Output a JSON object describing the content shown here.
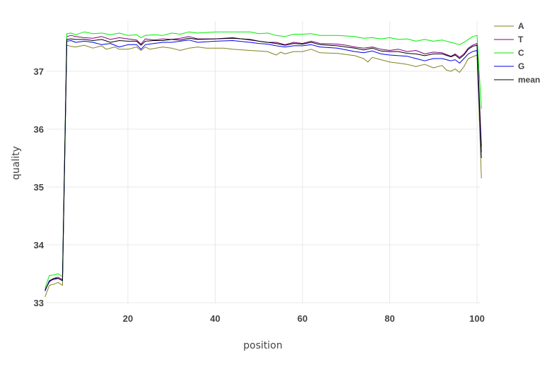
{
  "chart_data": {
    "type": "line",
    "xlabel": "position",
    "ylabel": "quality",
    "xlim": [
      1,
      101
    ],
    "ylim": [
      33,
      37.75
    ],
    "x_ticks": [
      20,
      40,
      60,
      80,
      100
    ],
    "y_ticks": [
      33,
      34,
      35,
      36,
      37
    ],
    "grid": true,
    "legend_position": "top-right",
    "series": [
      {
        "name": "A",
        "color": "#808020",
        "points": [
          [
            1,
            33.1
          ],
          [
            2,
            33.3
          ],
          [
            3,
            33.32
          ],
          [
            4,
            33.35
          ],
          [
            5,
            33.3
          ],
          [
            6,
            37.45
          ],
          [
            7,
            37.43
          ],
          [
            8,
            37.42
          ],
          [
            10,
            37.45
          ],
          [
            12,
            37.4
          ],
          [
            14,
            37.44
          ],
          [
            15,
            37.38
          ],
          [
            17,
            37.42
          ],
          [
            18,
            37.38
          ],
          [
            20,
            37.38
          ],
          [
            22,
            37.42
          ],
          [
            23,
            37.36
          ],
          [
            24,
            37.42
          ],
          [
            25,
            37.38
          ],
          [
            28,
            37.42
          ],
          [
            30,
            37.4
          ],
          [
            32,
            37.36
          ],
          [
            34,
            37.4
          ],
          [
            36,
            37.42
          ],
          [
            38,
            37.4
          ],
          [
            42,
            37.4
          ],
          [
            44,
            37.38
          ],
          [
            48,
            37.36
          ],
          [
            50,
            37.35
          ],
          [
            52,
            37.34
          ],
          [
            54,
            37.28
          ],
          [
            55,
            37.33
          ],
          [
            56,
            37.3
          ],
          [
            58,
            37.34
          ],
          [
            60,
            37.34
          ],
          [
            62,
            37.38
          ],
          [
            64,
            37.32
          ],
          [
            68,
            37.31
          ],
          [
            72,
            37.27
          ],
          [
            74,
            37.22
          ],
          [
            75,
            37.16
          ],
          [
            76,
            37.24
          ],
          [
            78,
            37.2
          ],
          [
            80,
            37.16
          ],
          [
            82,
            37.14
          ],
          [
            84,
            37.12
          ],
          [
            86,
            37.08
          ],
          [
            88,
            37.12
          ],
          [
            90,
            37.06
          ],
          [
            92,
            37.1
          ],
          [
            93,
            37.02
          ],
          [
            94,
            37.0
          ],
          [
            95,
            37.04
          ],
          [
            96,
            36.98
          ],
          [
            97,
            37.08
          ],
          [
            98,
            37.22
          ],
          [
            99,
            37.25
          ],
          [
            100,
            37.28
          ],
          [
            101,
            35.15
          ]
        ]
      },
      {
        "name": "T",
        "color": "#800080",
        "points": [
          [
            1,
            33.2
          ],
          [
            2,
            33.38
          ],
          [
            3,
            33.42
          ],
          [
            4,
            33.44
          ],
          [
            5,
            33.4
          ],
          [
            6,
            37.6
          ],
          [
            7,
            37.62
          ],
          [
            8,
            37.6
          ],
          [
            10,
            37.58
          ],
          [
            12,
            37.57
          ],
          [
            14,
            37.6
          ],
          [
            16,
            37.55
          ],
          [
            18,
            37.58
          ],
          [
            20,
            37.56
          ],
          [
            22,
            37.54
          ],
          [
            23,
            37.47
          ],
          [
            24,
            37.56
          ],
          [
            26,
            37.54
          ],
          [
            28,
            37.56
          ],
          [
            30,
            37.55
          ],
          [
            32,
            37.57
          ],
          [
            34,
            37.6
          ],
          [
            36,
            37.56
          ],
          [
            40,
            37.56
          ],
          [
            44,
            37.58
          ],
          [
            48,
            37.54
          ],
          [
            50,
            37.52
          ],
          [
            52,
            37.5
          ],
          [
            54,
            37.5
          ],
          [
            56,
            37.46
          ],
          [
            58,
            37.5
          ],
          [
            60,
            37.48
          ],
          [
            62,
            37.52
          ],
          [
            64,
            37.48
          ],
          [
            68,
            37.47
          ],
          [
            70,
            37.45
          ],
          [
            72,
            37.42
          ],
          [
            74,
            37.4
          ],
          [
            76,
            37.42
          ],
          [
            78,
            37.38
          ],
          [
            80,
            37.36
          ],
          [
            82,
            37.38
          ],
          [
            84,
            37.34
          ],
          [
            86,
            37.36
          ],
          [
            88,
            37.3
          ],
          [
            90,
            37.33
          ],
          [
            92,
            37.32
          ],
          [
            94,
            37.26
          ],
          [
            95,
            37.3
          ],
          [
            96,
            37.24
          ],
          [
            97,
            37.3
          ],
          [
            98,
            37.4
          ],
          [
            99,
            37.45
          ],
          [
            100,
            37.48
          ],
          [
            101,
            35.7
          ]
        ]
      },
      {
        "name": "C",
        "color": "#00ee00",
        "points": [
          [
            1,
            33.25
          ],
          [
            2,
            33.47
          ],
          [
            3,
            33.48
          ],
          [
            4,
            33.5
          ],
          [
            5,
            33.45
          ],
          [
            6,
            37.65
          ],
          [
            7,
            37.66
          ],
          [
            8,
            37.63
          ],
          [
            10,
            37.68
          ],
          [
            12,
            37.65
          ],
          [
            14,
            37.66
          ],
          [
            16,
            37.63
          ],
          [
            18,
            37.66
          ],
          [
            20,
            37.62
          ],
          [
            22,
            37.63
          ],
          [
            23,
            37.58
          ],
          [
            24,
            37.62
          ],
          [
            26,
            37.63
          ],
          [
            28,
            37.62
          ],
          [
            30,
            37.66
          ],
          [
            32,
            37.64
          ],
          [
            34,
            37.68
          ],
          [
            36,
            37.66
          ],
          [
            40,
            37.68
          ],
          [
            44,
            37.68
          ],
          [
            48,
            37.68
          ],
          [
            50,
            37.65
          ],
          [
            52,
            37.66
          ],
          [
            54,
            37.62
          ],
          [
            56,
            37.6
          ],
          [
            58,
            37.64
          ],
          [
            60,
            37.64
          ],
          [
            62,
            37.65
          ],
          [
            64,
            37.62
          ],
          [
            68,
            37.62
          ],
          [
            72,
            37.6
          ],
          [
            74,
            37.57
          ],
          [
            76,
            37.58
          ],
          [
            78,
            37.56
          ],
          [
            80,
            37.58
          ],
          [
            82,
            37.55
          ],
          [
            84,
            37.56
          ],
          [
            86,
            37.52
          ],
          [
            88,
            37.55
          ],
          [
            90,
            37.52
          ],
          [
            92,
            37.54
          ],
          [
            94,
            37.5
          ],
          [
            95,
            37.48
          ],
          [
            96,
            37.46
          ],
          [
            97,
            37.5
          ],
          [
            98,
            37.55
          ],
          [
            99,
            37.6
          ],
          [
            100,
            37.62
          ],
          [
            101,
            36.35
          ]
        ]
      },
      {
        "name": "G",
        "color": "#0000ee",
        "points": [
          [
            1,
            33.2
          ],
          [
            2,
            33.38
          ],
          [
            3,
            33.4
          ],
          [
            4,
            33.42
          ],
          [
            5,
            33.38
          ],
          [
            6,
            37.52
          ],
          [
            7,
            37.53
          ],
          [
            8,
            37.5
          ],
          [
            10,
            37.52
          ],
          [
            12,
            37.5
          ],
          [
            14,
            37.46
          ],
          [
            16,
            37.48
          ],
          [
            18,
            37.42
          ],
          [
            20,
            37.46
          ],
          [
            22,
            37.46
          ],
          [
            23,
            37.38
          ],
          [
            24,
            37.46
          ],
          [
            26,
            37.48
          ],
          [
            28,
            37.5
          ],
          [
            30,
            37.5
          ],
          [
            32,
            37.52
          ],
          [
            34,
            37.54
          ],
          [
            36,
            37.5
          ],
          [
            40,
            37.52
          ],
          [
            44,
            37.53
          ],
          [
            48,
            37.5
          ],
          [
            50,
            37.48
          ],
          [
            52,
            37.47
          ],
          [
            54,
            37.44
          ],
          [
            56,
            37.42
          ],
          [
            58,
            37.44
          ],
          [
            60,
            37.44
          ],
          [
            62,
            37.46
          ],
          [
            64,
            37.42
          ],
          [
            68,
            37.4
          ],
          [
            72,
            37.34
          ],
          [
            74,
            37.32
          ],
          [
            76,
            37.35
          ],
          [
            78,
            37.3
          ],
          [
            80,
            37.28
          ],
          [
            82,
            37.27
          ],
          [
            84,
            37.26
          ],
          [
            86,
            37.22
          ],
          [
            88,
            37.18
          ],
          [
            90,
            37.22
          ],
          [
            92,
            37.22
          ],
          [
            94,
            37.18
          ],
          [
            95,
            37.2
          ],
          [
            96,
            37.14
          ],
          [
            97,
            37.22
          ],
          [
            98,
            37.3
          ],
          [
            99,
            37.34
          ],
          [
            100,
            37.36
          ],
          [
            101,
            35.5
          ]
        ]
      },
      {
        "name": "mean",
        "color": "#000000",
        "points": [
          [
            1,
            33.22
          ],
          [
            2,
            33.36
          ],
          [
            3,
            33.42
          ],
          [
            4,
            33.42
          ],
          [
            5,
            33.38
          ],
          [
            6,
            37.55
          ],
          [
            7,
            37.56
          ],
          [
            8,
            37.55
          ],
          [
            10,
            37.55
          ],
          [
            12,
            37.53
          ],
          [
            14,
            37.55
          ],
          [
            16,
            37.5
          ],
          [
            18,
            37.53
          ],
          [
            20,
            37.52
          ],
          [
            22,
            37.52
          ],
          [
            23,
            37.45
          ],
          [
            24,
            37.52
          ],
          [
            26,
            37.53
          ],
          [
            28,
            37.53
          ],
          [
            30,
            37.55
          ],
          [
            32,
            37.54
          ],
          [
            34,
            37.57
          ],
          [
            36,
            37.55
          ],
          [
            40,
            37.56
          ],
          [
            44,
            37.57
          ],
          [
            48,
            37.55
          ],
          [
            50,
            37.52
          ],
          [
            52,
            37.5
          ],
          [
            54,
            37.48
          ],
          [
            56,
            37.45
          ],
          [
            58,
            37.48
          ],
          [
            60,
            37.47
          ],
          [
            62,
            37.5
          ],
          [
            64,
            37.46
          ],
          [
            68,
            37.44
          ],
          [
            70,
            37.42
          ],
          [
            72,
            37.4
          ],
          [
            74,
            37.37
          ],
          [
            76,
            37.4
          ],
          [
            78,
            37.35
          ],
          [
            80,
            37.34
          ],
          [
            82,
            37.34
          ],
          [
            84,
            37.31
          ],
          [
            86,
            37.3
          ],
          [
            88,
            37.27
          ],
          [
            90,
            37.3
          ],
          [
            92,
            37.3
          ],
          [
            94,
            37.25
          ],
          [
            95,
            37.28
          ],
          [
            96,
            37.22
          ],
          [
            97,
            37.28
          ],
          [
            98,
            37.38
          ],
          [
            99,
            37.43
          ],
          [
            100,
            37.45
          ],
          [
            101,
            35.6
          ]
        ]
      }
    ]
  }
}
